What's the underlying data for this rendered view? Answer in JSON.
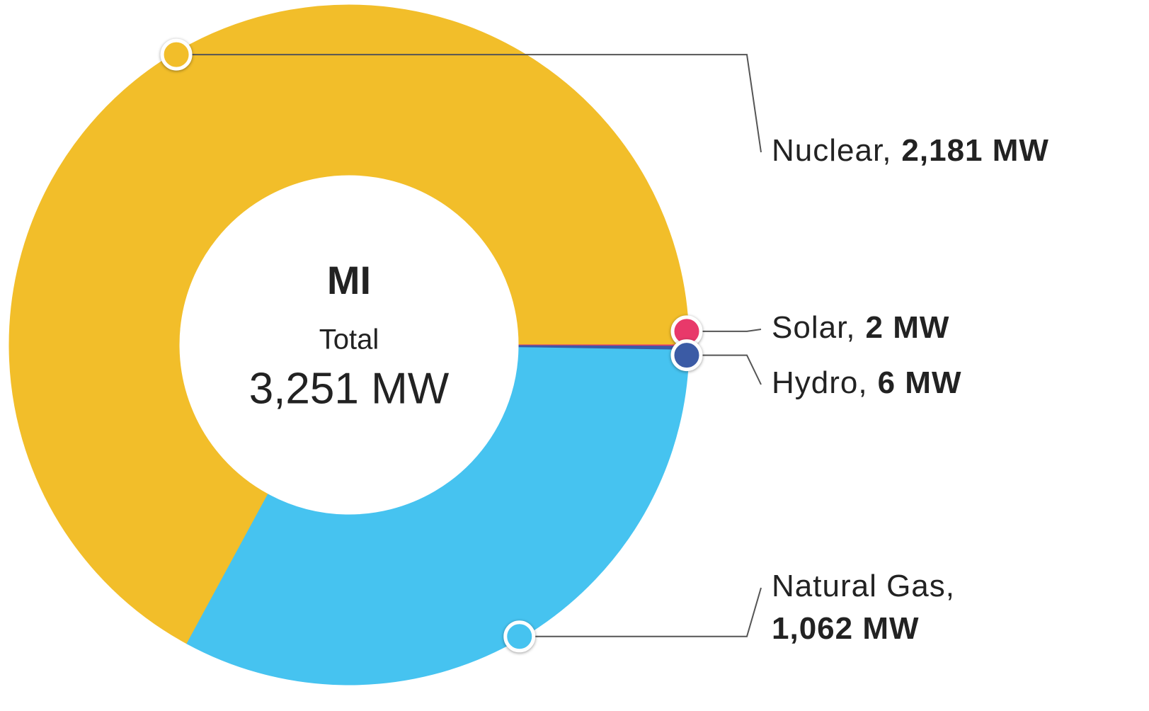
{
  "chart_data": {
    "type": "pie",
    "donut": true,
    "categories": [
      "Nuclear,",
      "Solar,",
      "Hydro,",
      "Natural Gas,"
    ],
    "values": [
      2181,
      2,
      6,
      1062
    ],
    "value_labels": [
      "2,181 MW",
      "2 MW",
      "6 MW",
      "1,062 MW"
    ],
    "colors": [
      "#f2be2a",
      "#e8396a",
      "#3b5ba5",
      "#46c3f0"
    ],
    "center": {
      "title": "MI",
      "label": "Total",
      "value": 3251,
      "value_label": "3,251 MW"
    }
  }
}
